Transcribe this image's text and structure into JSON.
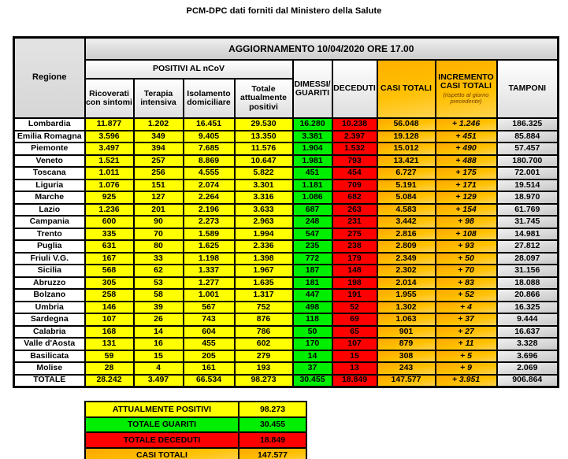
{
  "title": "PCM-DPC dati forniti dal Ministero della Salute",
  "table": {
    "update_banner": "AGGIORNAMENTO 10/04/2020 ORE 17.00",
    "region_header": "Regione",
    "positivi_group": "POSITIVI AL nCoV",
    "headers": {
      "ricoverati": "Ricoverati con sintomi",
      "terapia": "Terapia intensiva",
      "isolamento": "Isolamento domiciliare",
      "totale_positivi": "Totale attualmente positivi",
      "dimessi": "DIMESSI/ GUARITI",
      "deceduti": "DECEDUTI",
      "casi": "CASI TOTALI",
      "incremento": "INCREMENTO CASI TOTALI",
      "incremento_note": "(rispetto al giorno precedente)",
      "tamponi": "TAMPONI"
    }
  },
  "chart_data": {
    "type": "table",
    "title": "AGGIORNAMENTO 10/04/2020 ORE 17.00",
    "columns": [
      "Regione",
      "Ricoverati con sintomi",
      "Terapia intensiva",
      "Isolamento domiciliare",
      "Totale attualmente positivi",
      "DIMESSI/GUARITI",
      "DECEDUTI",
      "CASI TOTALI",
      "INCREMENTO CASI TOTALI (rispetto al giorno precedente)",
      "TAMPONI"
    ],
    "rows": [
      [
        "Lombardia",
        "11.877",
        "1.202",
        "16.451",
        "29.530",
        "16.280",
        "10.238",
        "56.048",
        "+ 1.246",
        "186.325"
      ],
      [
        "Emilia Romagna",
        "3.596",
        "349",
        "9.405",
        "13.350",
        "3.381",
        "2.397",
        "19.128",
        "+ 451",
        "85.884"
      ],
      [
        "Piemonte",
        "3.497",
        "394",
        "7.685",
        "11.576",
        "1.904",
        "1.532",
        "15.012",
        "+ 490",
        "57.457"
      ],
      [
        "Veneto",
        "1.521",
        "257",
        "8.869",
        "10.647",
        "1.981",
        "793",
        "13.421",
        "+ 488",
        "180.700"
      ],
      [
        "Toscana",
        "1.011",
        "256",
        "4.555",
        "5.822",
        "451",
        "454",
        "6.727",
        "+ 175",
        "72.001"
      ],
      [
        "Liguria",
        "1.076",
        "151",
        "2.074",
        "3.301",
        "1.181",
        "709",
        "5.191",
        "+ 171",
        "19.514"
      ],
      [
        "Marche",
        "925",
        "127",
        "2.264",
        "3.316",
        "1.086",
        "682",
        "5.084",
        "+ 129",
        "18.970"
      ],
      [
        "Lazio",
        "1.236",
        "201",
        "2.196",
        "3.633",
        "687",
        "263",
        "4.583",
        "+ 154",
        "61.769"
      ],
      [
        "Campania",
        "600",
        "90",
        "2.273",
        "2.963",
        "248",
        "231",
        "3.442",
        "+ 98",
        "31.745"
      ],
      [
        "Trento",
        "335",
        "70",
        "1.589",
        "1.994",
        "547",
        "275",
        "2.816",
        "+ 108",
        "14.981"
      ],
      [
        "Puglia",
        "631",
        "80",
        "1.625",
        "2.336",
        "235",
        "238",
        "2.809",
        "+ 93",
        "27.812"
      ],
      [
        "Friuli V.G.",
        "167",
        "33",
        "1.198",
        "1.398",
        "772",
        "179",
        "2.349",
        "+ 50",
        "28.097"
      ],
      [
        "Sicilia",
        "568",
        "62",
        "1.337",
        "1.967",
        "187",
        "148",
        "2.302",
        "+ 70",
        "31.156"
      ],
      [
        "Abruzzo",
        "305",
        "53",
        "1.277",
        "1.635",
        "181",
        "198",
        "2.014",
        "+ 83",
        "18.088"
      ],
      [
        "Bolzano",
        "258",
        "58",
        "1.001",
        "1.317",
        "447",
        "191",
        "1.955",
        "+ 52",
        "20.866"
      ],
      [
        "Umbria",
        "146",
        "39",
        "567",
        "752",
        "498",
        "52",
        "1.302",
        "+ 4",
        "16.325"
      ],
      [
        "Sardegna",
        "107",
        "26",
        "743",
        "876",
        "118",
        "69",
        "1.063",
        "+ 37",
        "9.444"
      ],
      [
        "Calabria",
        "168",
        "14",
        "604",
        "786",
        "50",
        "65",
        "901",
        "+ 27",
        "16.637"
      ],
      [
        "Valle d'Aosta",
        "131",
        "16",
        "455",
        "602",
        "170",
        "107",
        "879",
        "+ 11",
        "3.328"
      ],
      [
        "Basilicata",
        "59",
        "15",
        "205",
        "279",
        "14",
        "15",
        "308",
        "+ 5",
        "3.696"
      ],
      [
        "Molise",
        "28",
        "4",
        "161",
        "193",
        "37",
        "13",
        "243",
        "+ 9",
        "2.069"
      ]
    ],
    "total_row": [
      "TOTALE",
      "28.242",
      "3.497",
      "66.534",
      "98.273",
      "30.455",
      "18.849",
      "147.577",
      "+ 3.951",
      "906.864"
    ]
  },
  "summary": {
    "rows": [
      {
        "label": "ATTUALMENTE POSITIVI",
        "value": "98.273",
        "color": "yellow"
      },
      {
        "label": "TOTALE GUARITI",
        "value": "30.455",
        "color": "green"
      },
      {
        "label": "TOTALE DECEDUTI",
        "value": "18.849",
        "color": "red"
      },
      {
        "label": "CASI TOTALI",
        "value": "147.577",
        "color": "orange"
      }
    ]
  },
  "colors": {
    "positivi_yellow": "#FFFF00",
    "guariti_green": "#00EE00",
    "deceduti_red": "#FF0000",
    "totali_orange": "#FFC000",
    "tamponi_silver": "#D9D9D9",
    "header_gray": "#D9D9D9",
    "border_black": "#000000"
  }
}
